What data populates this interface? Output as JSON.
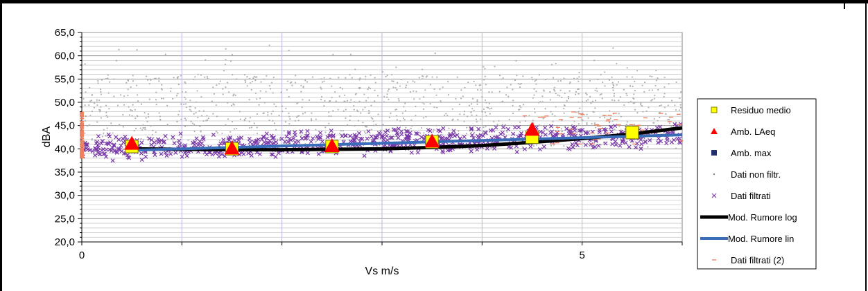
{
  "chart_data": {
    "type": "scatter",
    "xlabel": "Vs m/s",
    "ylabel": "dBA",
    "xlim": [
      0,
      6
    ],
    "ylim": [
      20,
      65
    ],
    "x_ticks": [
      {
        "value": 0,
        "label": "0"
      },
      {
        "value": 5,
        "label": "5"
      }
    ],
    "y_ticks": [
      {
        "value": 65,
        "label": "65,0"
      },
      {
        "value": 60,
        "label": "60,0"
      },
      {
        "value": 55,
        "label": "55,0"
      },
      {
        "value": 50,
        "label": "50,0"
      },
      {
        "value": 45,
        "label": "45,0"
      },
      {
        "value": 40,
        "label": "40,0"
      },
      {
        "value": 35,
        "label": "35,0"
      },
      {
        "value": 30,
        "label": "30,0"
      },
      {
        "value": 25,
        "label": "25,0"
      },
      {
        "value": 20,
        "label": "20,0"
      }
    ],
    "major_gridlines_x": [
      1,
      2,
      3,
      4,
      5
    ],
    "grid": true,
    "legend_position": "right",
    "colors": {
      "residuo": "#ffff00",
      "laeq": "#ff0000",
      "max": "#1f2f6e",
      "nonfiltr": "#b0b0b0",
      "filtrati": "#7a3aa8",
      "log": "#000000",
      "lin": "#3a6db8",
      "filtrati2": "#f08060",
      "grid_major": "#b8b8e0",
      "grid_minor": "#c8c8c8"
    },
    "series": [
      {
        "name": "Residuo medio",
        "marker": "square",
        "x": [
          0.5,
          1.5,
          2.5,
          3.5,
          4.5,
          5.5
        ],
        "y": [
          40.5,
          40.0,
          40.5,
          41.5,
          42.5,
          43.5
        ]
      },
      {
        "name": "Amb. LAeq",
        "marker": "triangle",
        "x": [
          0.5,
          1.5,
          2.5,
          3.5,
          4.5
        ],
        "y": [
          41.0,
          40.0,
          40.5,
          41.5,
          44.0
        ]
      },
      {
        "name": "Amb. max",
        "marker": "square-small",
        "x": [],
        "y": []
      },
      {
        "name": "Dati non filtr.",
        "marker": "dot",
        "x": [],
        "y": []
      },
      {
        "name": "Dati filtrati",
        "marker": "x",
        "x": [],
        "y": []
      },
      {
        "name": "Mod. Rumore log",
        "marker": "line",
        "x": [
          0.5,
          1.0,
          1.5,
          2.0,
          2.5,
          3.0,
          3.5,
          4.0,
          4.5,
          5.0,
          5.5,
          6.0
        ],
        "y": [
          40.0,
          39.9,
          39.8,
          39.8,
          39.9,
          40.0,
          40.3,
          40.7,
          41.4,
          42.2,
          43.2,
          44.5
        ]
      },
      {
        "name": "Mod. Rumore lin",
        "marker": "line",
        "x": [
          0.5,
          6.0
        ],
        "y": [
          39.7,
          43.0
        ]
      },
      {
        "name": "Dati filtrati (2)",
        "marker": "dash",
        "x": [],
        "y": []
      }
    ]
  }
}
